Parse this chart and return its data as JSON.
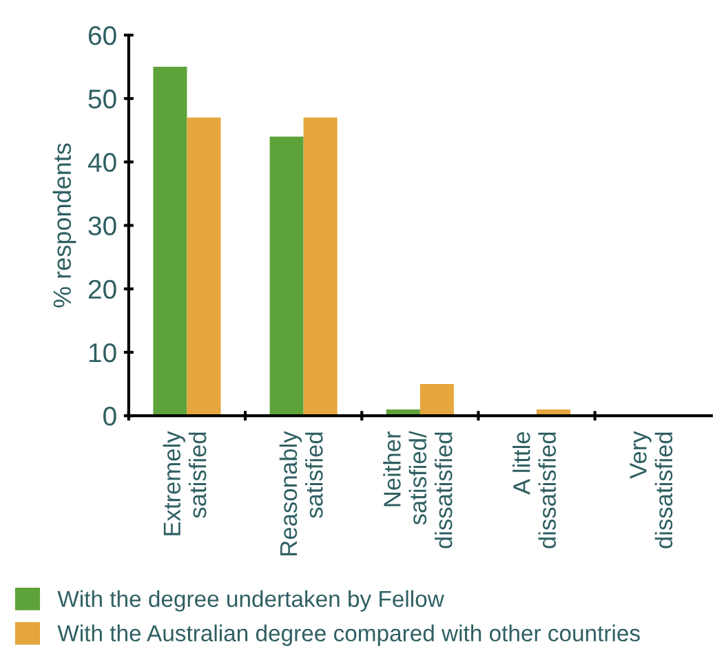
{
  "chart_data": {
    "type": "bar",
    "ylabel": "% respondents",
    "categories": [
      "Extremely\nsatisfied",
      "Reasonably\nsatisfied",
      "Neither\nsatisfied/\ndissatisfied",
      "A little\ndissatisfied",
      "Very\ndissatisfied"
    ],
    "series": [
      {
        "name": "With the degree undertaken by Fellow",
        "color": "#5ea33a",
        "values": [
          55,
          44,
          1,
          0,
          0
        ]
      },
      {
        "name": "With the Australian degree compared with other countries",
        "color": "#e5a63d",
        "values": [
          47,
          47,
          5,
          1,
          0
        ]
      }
    ],
    "ylim": [
      0,
      60
    ],
    "yticks": [
      0,
      10,
      20,
      30,
      40,
      50,
      60
    ],
    "grid": false,
    "legend": "bottom"
  }
}
